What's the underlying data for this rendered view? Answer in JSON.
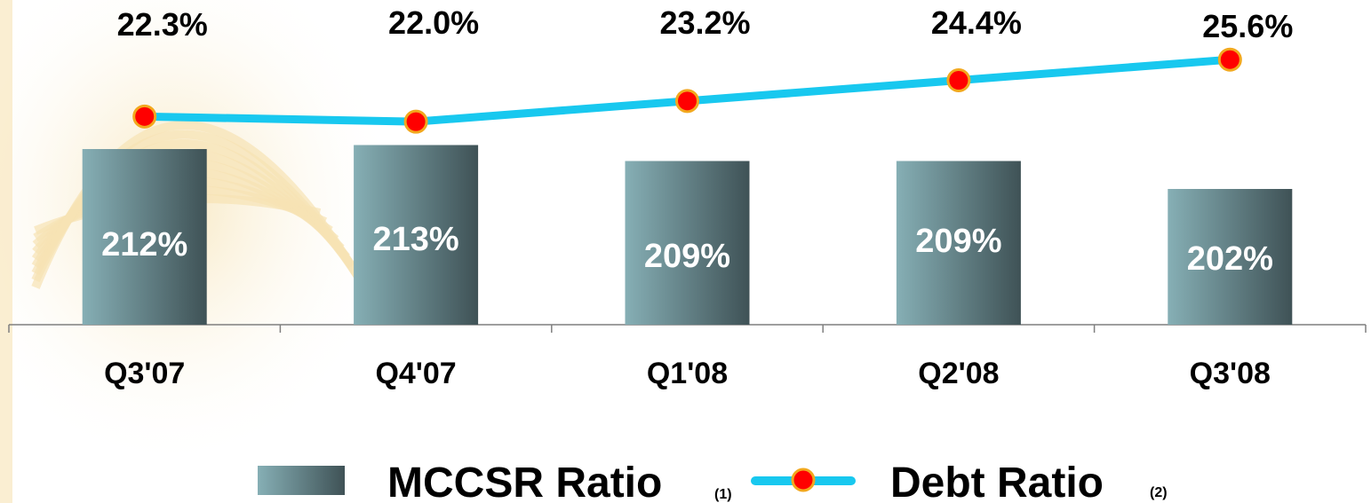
{
  "chart_data": {
    "type": "bar",
    "categories": [
      "Q3'07",
      "Q4'07",
      "Q1'08",
      "Q2'08",
      "Q3'08"
    ],
    "series": [
      {
        "name": "MCCSR Ratio",
        "type": "bar",
        "values": [
          212,
          213,
          209,
          209,
          202
        ],
        "labels": [
          "212%",
          "213%",
          "209%",
          "209%",
          "202%"
        ],
        "color": "#3f5256",
        "color_light": "#86afb5"
      },
      {
        "name": "Debt Ratio",
        "type": "line",
        "values": [
          22.3,
          22.0,
          23.2,
          24.4,
          25.6
        ],
        "labels": [
          "22.3%",
          "22.0%",
          "23.2%",
          "24.4%",
          "25.6%"
        ],
        "color": "#18c8ef",
        "marker_color": "#ff0000",
        "marker_edge": "#f2a81e"
      }
    ],
    "legend": {
      "placement": "bottom",
      "items": [
        {
          "label": "MCCSR Ratio",
          "note": "(1)"
        },
        {
          "label": "Debt Ratio",
          "note": "(2)"
        }
      ]
    },
    "grid": false,
    "title": "",
    "xlabel": "",
    "ylabel": ""
  },
  "background": {
    "color": "#ffffff",
    "watermark_color": "#f6e3b4"
  }
}
